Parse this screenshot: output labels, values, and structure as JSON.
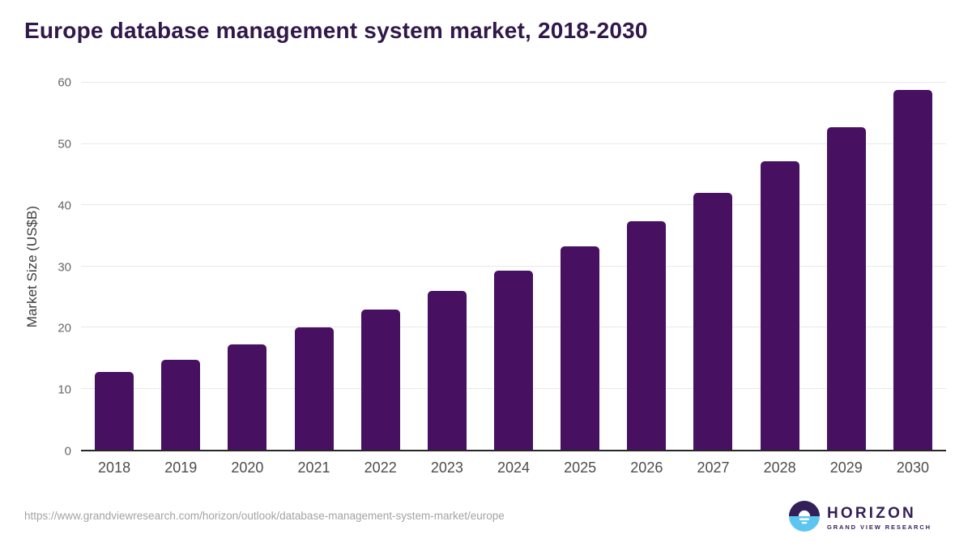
{
  "page": {
    "title": "Europe database management system market, 2018-2030"
  },
  "chart_data": {
    "type": "bar",
    "title": "Europe database management system market, 2018-2030",
    "categories": [
      "2018",
      "2019",
      "2020",
      "2021",
      "2022",
      "2023",
      "2024",
      "2025",
      "2026",
      "2027",
      "2028",
      "2029",
      "2030"
    ],
    "values": [
      12.7,
      14.7,
      17.2,
      20.0,
      22.9,
      26.0,
      29.3,
      33.2,
      37.4,
      42.0,
      47.1,
      52.7,
      58.8
    ],
    "xlabel": "",
    "ylabel": "Market Size (US$B)",
    "ylim": [
      0,
      60
    ],
    "yticks": [
      0,
      10,
      20,
      30,
      40,
      50,
      60
    ],
    "grid": true,
    "legend": false,
    "bar_color": "#471061"
  },
  "footer": {
    "source_url": "https://www.grandviewresearch.com/horizon/outlook/database-management-system-market/europe",
    "logo": {
      "brand": "HORIZON",
      "sub_brand": "GRAND VIEW RESEARCH"
    }
  },
  "colors": {
    "title_text": "#31184a",
    "bar": "#471061",
    "logo_purple": "#342058",
    "logo_blue": "#5bc6f0",
    "axis_tick_text": "#666666",
    "x_tick_text": "#4d4d4d",
    "gridline": "#e8e8e8",
    "baseline": "#262626",
    "source_text": "#a3a3a3"
  }
}
